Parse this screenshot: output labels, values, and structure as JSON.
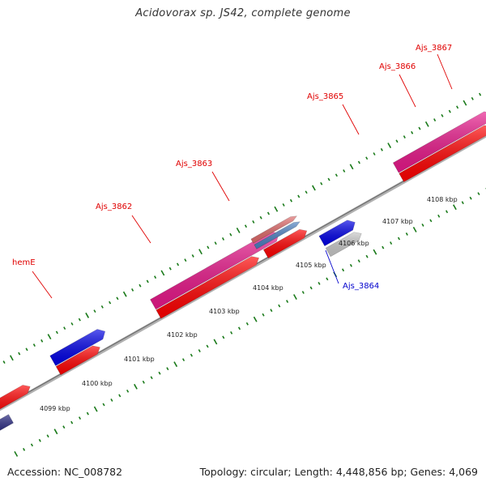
{
  "title": "Acidovorax sp. JS42, complete genome",
  "footer": {
    "accession": "Accession: NC_008782",
    "summary": "Topology: circular; Length: 4,448,856 bp; Genes: 4,069"
  },
  "colors": {
    "background": "#ffffff",
    "backbone": "#8c8c8c",
    "tick": "#1a7a1a",
    "label_red": "#e00000",
    "label_blue": "#0000cc"
  },
  "scale_labels": [
    "4099 kbp",
    "4100 kbp",
    "4101 kbp",
    "4102 kbp",
    "4103 kbp",
    "4104 kbp",
    "4105 kbp",
    "4106 kbp",
    "4107 kbp",
    "4108 kbp"
  ],
  "genes": [
    {
      "label": "hemE",
      "label_color": "#e00000"
    },
    {
      "label": "Ajs_3862",
      "label_color": "#e00000"
    },
    {
      "label": "Ajs_3863",
      "label_color": "#e00000"
    },
    {
      "label": "Ajs_3865",
      "label_color": "#e00000"
    },
    {
      "label": "Ajs_3866",
      "label_color": "#e00000"
    },
    {
      "label": "Ajs_3867",
      "label_color": "#e00000"
    },
    {
      "label": "Ajs_3864",
      "label_color": "#0000cc"
    }
  ]
}
